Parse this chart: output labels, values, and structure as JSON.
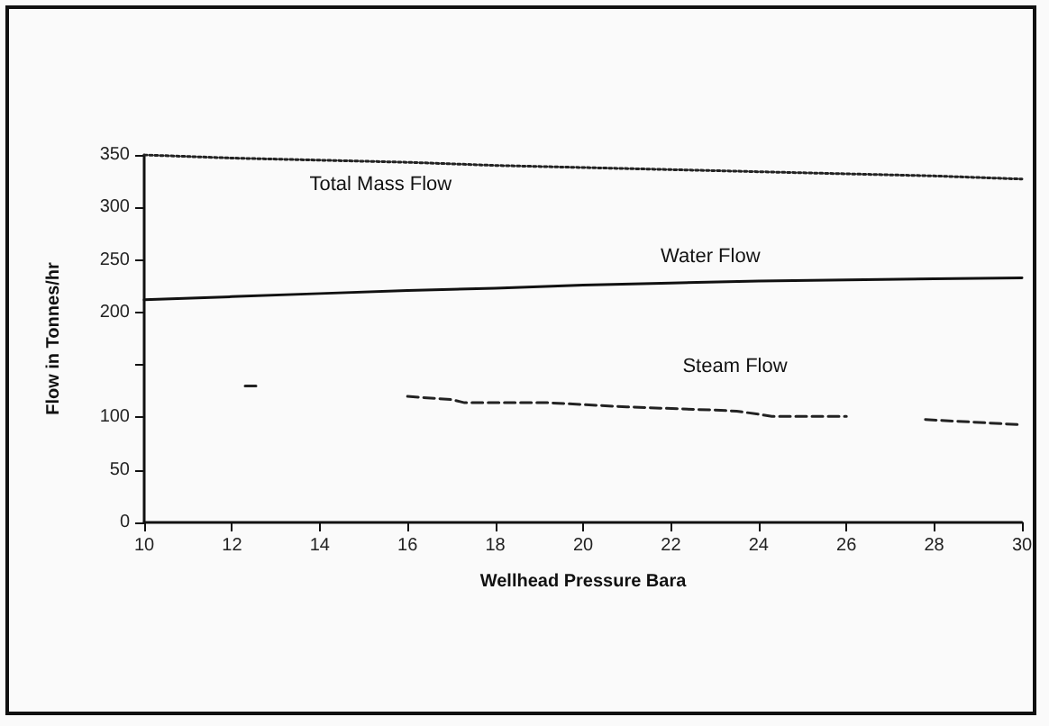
{
  "chart_data": {
    "type": "line",
    "xlabel": "Wellhead Pressure Bara",
    "ylabel": "Flow in Tonnes/hr",
    "xlim": [
      10,
      30
    ],
    "xticks": [
      10,
      12,
      14,
      16,
      18,
      20,
      22,
      24,
      26,
      28,
      30
    ],
    "ylim": [
      0,
      350
    ],
    "yticks": [
      0,
      50,
      100,
      {
        "value": 150,
        "label": null
      },
      200,
      250,
      300,
      350
    ],
    "grid": false,
    "legend": false,
    "marker": "none",
    "series": [
      {
        "name": "Total Mass Flow",
        "color": "#222222",
        "line_style": "dotted",
        "x": [
          10,
          12,
          14,
          16,
          18,
          20,
          22,
          24,
          26,
          28,
          30
        ],
        "values": [
          350,
          347,
          345,
          343,
          340,
          338,
          336,
          334,
          332,
          330,
          327
        ]
      },
      {
        "name": "Water Flow",
        "color": "#111111",
        "line_style": "solid",
        "x": [
          10,
          12,
          14,
          16,
          18,
          20,
          22,
          24,
          26,
          28,
          30
        ],
        "values": [
          212,
          215,
          218,
          221,
          223,
          226,
          228,
          230,
          231,
          232,
          233
        ]
      },
      {
        "name": "Steam Flow",
        "color": "#222222",
        "line_style": "dashed",
        "x": [
          12.3,
          12.6,
          14,
          16,
          17,
          17.3,
          19.2,
          21,
          23,
          23.5,
          24,
          24.3,
          26,
          27,
          27.8,
          30
        ],
        "values": [
          130,
          130,
          null,
          120,
          117,
          114,
          114,
          110,
          107,
          106,
          103,
          101,
          101,
          null,
          98,
          93
        ]
      }
    ]
  }
}
